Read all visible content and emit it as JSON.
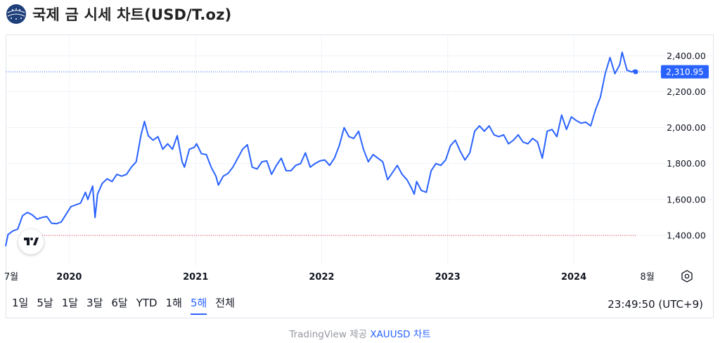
{
  "header": {
    "title": "국제 금 시세 차트(USD/T.oz)",
    "logo_icon": "globe-icon"
  },
  "chart_data": {
    "type": "line",
    "title": "국제 금 시세 차트(USD/T.oz)",
    "x_labels": [
      "7월",
      "2020",
      "2021",
      "2022",
      "2023",
      "2024",
      "8월"
    ],
    "y_ticks": [
      1400,
      1600,
      1800,
      2000,
      2200,
      2400
    ],
    "y_tick_labels": [
      "1,400.00",
      "1,600.00",
      "1,800.00",
      "2,000.00",
      "2,200.00",
      "2,400.00"
    ],
    "ylim": [
      1255,
      2515
    ],
    "xlim": [
      "2019-07-01",
      "2024-08-20"
    ],
    "last_price": 2310.95,
    "last_price_label": "2,310.95",
    "base_line": 1400,
    "color": "#2962ff",
    "grid": true,
    "series": [
      {
        "values": [
          [
            "2019-07-01",
            1340
          ],
          [
            "2019-07-08",
            1405
          ],
          [
            "2019-07-22",
            1425
          ],
          [
            "2019-08-05",
            1435
          ],
          [
            "2019-08-19",
            1510
          ],
          [
            "2019-09-02",
            1528
          ],
          [
            "2019-09-16",
            1515
          ],
          [
            "2019-09-30",
            1490
          ],
          [
            "2019-10-14",
            1500
          ],
          [
            "2019-10-28",
            1505
          ],
          [
            "2019-11-11",
            1468
          ],
          [
            "2019-11-25",
            1465
          ],
          [
            "2019-12-09",
            1475
          ],
          [
            "2019-12-23",
            1518
          ],
          [
            "2020-01-06",
            1560
          ],
          [
            "2020-01-20",
            1570
          ],
          [
            "2020-02-03",
            1580
          ],
          [
            "2020-02-17",
            1640
          ],
          [
            "2020-02-24",
            1600
          ],
          [
            "2020-03-09",
            1675
          ],
          [
            "2020-03-16",
            1500
          ],
          [
            "2020-03-23",
            1630
          ],
          [
            "2020-04-06",
            1690
          ],
          [
            "2020-04-20",
            1715
          ],
          [
            "2020-05-04",
            1700
          ],
          [
            "2020-05-18",
            1740
          ],
          [
            "2020-06-01",
            1730
          ],
          [
            "2020-06-15",
            1740
          ],
          [
            "2020-06-29",
            1780
          ],
          [
            "2020-07-13",
            1810
          ],
          [
            "2020-07-27",
            1960
          ],
          [
            "2020-08-06",
            2035
          ],
          [
            "2020-08-17",
            1955
          ],
          [
            "2020-08-31",
            1930
          ],
          [
            "2020-09-14",
            1950
          ],
          [
            "2020-09-28",
            1880
          ],
          [
            "2020-10-12",
            1910
          ],
          [
            "2020-10-26",
            1880
          ],
          [
            "2020-11-09",
            1955
          ],
          [
            "2020-11-23",
            1810
          ],
          [
            "2020-11-30",
            1780
          ],
          [
            "2020-12-14",
            1880
          ],
          [
            "2020-12-28",
            1890
          ],
          [
            "2021-01-04",
            1910
          ],
          [
            "2021-01-18",
            1855
          ],
          [
            "2021-02-01",
            1850
          ],
          [
            "2021-02-15",
            1780
          ],
          [
            "2021-03-01",
            1730
          ],
          [
            "2021-03-08",
            1680
          ],
          [
            "2021-03-22",
            1730
          ],
          [
            "2021-04-05",
            1745
          ],
          [
            "2021-04-19",
            1780
          ],
          [
            "2021-05-03",
            1830
          ],
          [
            "2021-05-17",
            1880
          ],
          [
            "2021-05-31",
            1905
          ],
          [
            "2021-06-14",
            1780
          ],
          [
            "2021-06-28",
            1770
          ],
          [
            "2021-07-12",
            1810
          ],
          [
            "2021-07-26",
            1815
          ],
          [
            "2021-08-09",
            1740
          ],
          [
            "2021-08-23",
            1790
          ],
          [
            "2021-09-06",
            1830
          ],
          [
            "2021-09-20",
            1760
          ],
          [
            "2021-10-04",
            1760
          ],
          [
            "2021-10-18",
            1790
          ],
          [
            "2021-11-01",
            1800
          ],
          [
            "2021-11-15",
            1860
          ],
          [
            "2021-11-29",
            1780
          ],
          [
            "2021-12-13",
            1800
          ],
          [
            "2021-12-27",
            1815
          ],
          [
            "2022-01-10",
            1820
          ],
          [
            "2022-01-24",
            1790
          ],
          [
            "2022-02-07",
            1830
          ],
          [
            "2022-02-21",
            1900
          ],
          [
            "2022-03-07",
            2000
          ],
          [
            "2022-03-21",
            1950
          ],
          [
            "2022-04-04",
            1940
          ],
          [
            "2022-04-18",
            1980
          ],
          [
            "2022-05-02",
            1880
          ],
          [
            "2022-05-16",
            1810
          ],
          [
            "2022-05-30",
            1850
          ],
          [
            "2022-06-13",
            1830
          ],
          [
            "2022-06-27",
            1810
          ],
          [
            "2022-07-11",
            1710
          ],
          [
            "2022-07-25",
            1750
          ],
          [
            "2022-08-08",
            1790
          ],
          [
            "2022-08-22",
            1740
          ],
          [
            "2022-09-05",
            1710
          ],
          [
            "2022-09-19",
            1660
          ],
          [
            "2022-09-26",
            1630
          ],
          [
            "2022-10-03",
            1700
          ],
          [
            "2022-10-17",
            1650
          ],
          [
            "2022-10-31",
            1640
          ],
          [
            "2022-11-14",
            1760
          ],
          [
            "2022-11-28",
            1800
          ],
          [
            "2022-12-12",
            1790
          ],
          [
            "2022-12-26",
            1820
          ],
          [
            "2023-01-09",
            1900
          ],
          [
            "2023-01-23",
            1930
          ],
          [
            "2023-02-06",
            1870
          ],
          [
            "2023-02-20",
            1820
          ],
          [
            "2023-03-06",
            1860
          ],
          [
            "2023-03-20",
            1980
          ],
          [
            "2023-04-03",
            2010
          ],
          [
            "2023-04-17",
            1980
          ],
          [
            "2023-05-01",
            2010
          ],
          [
            "2023-05-15",
            1960
          ],
          [
            "2023-05-29",
            1950
          ],
          [
            "2023-06-12",
            1960
          ],
          [
            "2023-06-26",
            1910
          ],
          [
            "2023-07-10",
            1930
          ],
          [
            "2023-07-24",
            1960
          ],
          [
            "2023-08-07",
            1920
          ],
          [
            "2023-08-21",
            1910
          ],
          [
            "2023-09-04",
            1940
          ],
          [
            "2023-09-18",
            1920
          ],
          [
            "2023-10-02",
            1830
          ],
          [
            "2023-10-16",
            1980
          ],
          [
            "2023-10-30",
            1990
          ],
          [
            "2023-11-13",
            1950
          ],
          [
            "2023-11-27",
            2070
          ],
          [
            "2023-12-11",
            1990
          ],
          [
            "2023-12-25",
            2060
          ],
          [
            "2024-01-08",
            2040
          ],
          [
            "2024-01-22",
            2025
          ],
          [
            "2024-02-05",
            2030
          ],
          [
            "2024-02-19",
            2010
          ],
          [
            "2024-03-04",
            2100
          ],
          [
            "2024-03-18",
            2170
          ],
          [
            "2024-04-01",
            2300
          ],
          [
            "2024-04-15",
            2390
          ],
          [
            "2024-04-29",
            2300
          ],
          [
            "2024-05-13",
            2350
          ],
          [
            "2024-05-20",
            2420
          ],
          [
            "2024-06-03",
            2320
          ],
          [
            "2024-06-17",
            2310
          ],
          [
            "2024-06-24",
            2320
          ],
          [
            "2024-07-01",
            2310.95
          ]
        ]
      }
    ]
  },
  "ranges": [
    "1일",
    "5날",
    "1달",
    "3달",
    "6달",
    "YTD",
    "1해",
    "5해",
    "전체"
  ],
  "active_range": "5해",
  "clock": "23:49:50 (UTC+9)",
  "footer": {
    "prefix": "TradingView 제공 ",
    "link": "XAUUSD 차트"
  },
  "icons": {
    "settings": "gear-icon",
    "brand": "tradingview-logo-icon"
  }
}
